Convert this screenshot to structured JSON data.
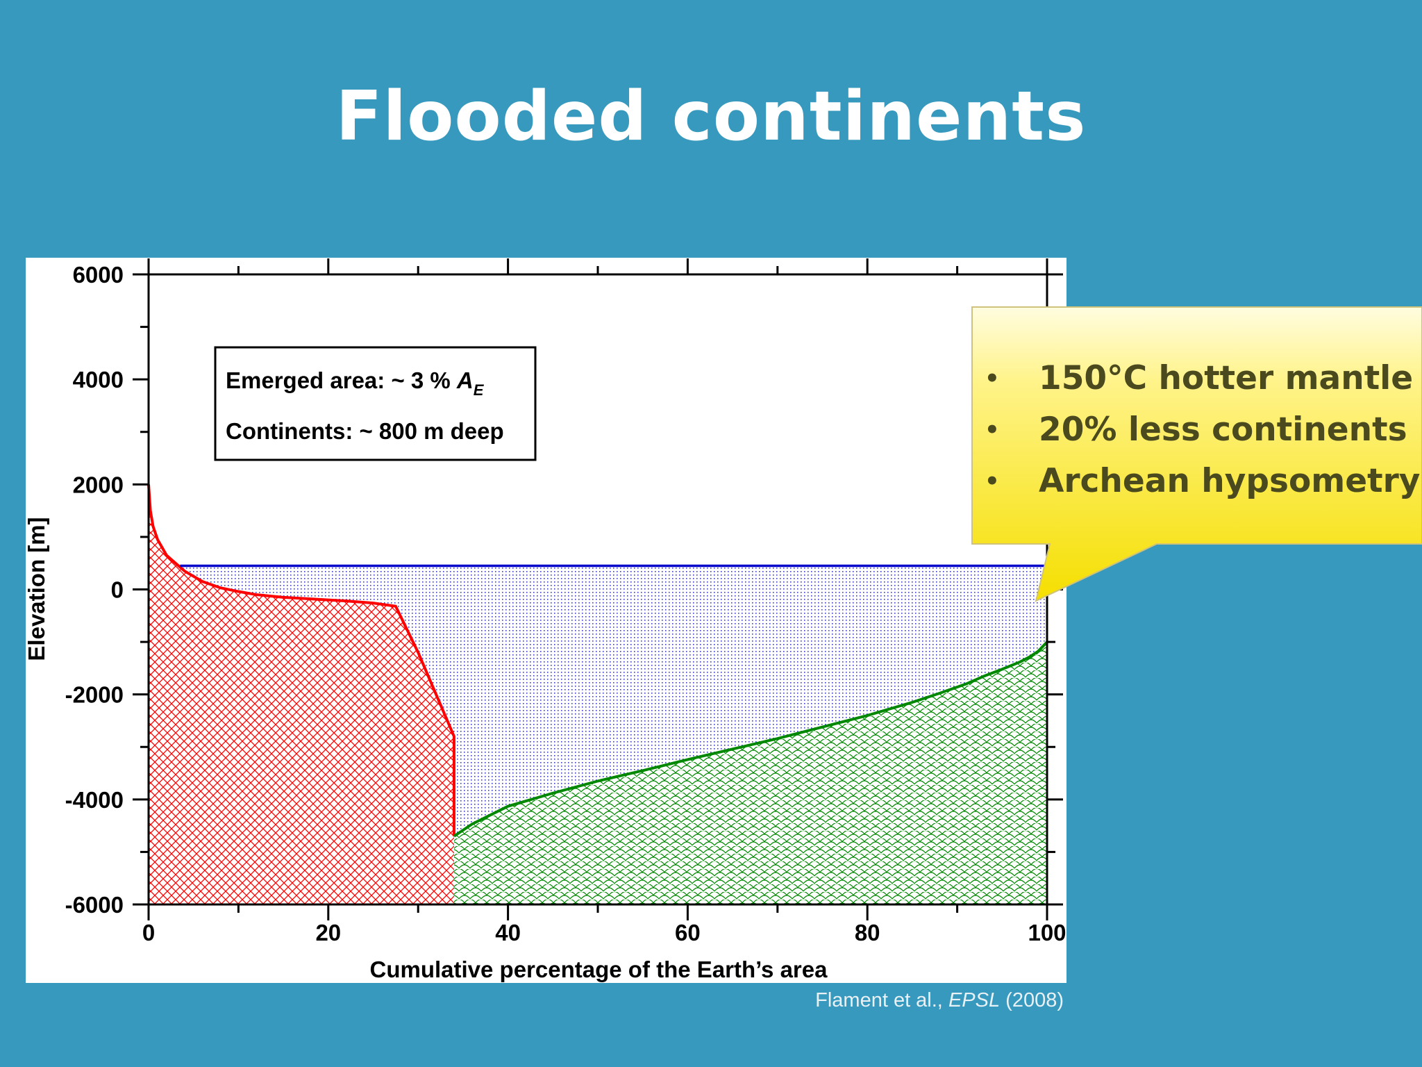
{
  "slide": {
    "title": "Flooded continents"
  },
  "callout": {
    "items": [
      "150°C hotter mantle",
      "20% less continents",
      "Archean hypsometry"
    ],
    "bullet": "•",
    "colors": {
      "fill_top": "#fffde0",
      "fill_bottom": "#f5df00",
      "text": "#4a4a1e"
    }
  },
  "citation": {
    "authors": "Flament et al., ",
    "journal": "EPSL",
    "year": " (2008)"
  },
  "chart_data": {
    "type": "area",
    "xlabel": "Cumulative percentage of the Earth’s area",
    "ylabel": "Elevation [m]",
    "xlim": [
      0,
      100
    ],
    "ylim": [
      -6000,
      6000
    ],
    "xticks": [
      0,
      20,
      40,
      60,
      80,
      100
    ],
    "yticks": [
      6000,
      4000,
      2000,
      0,
      -2000,
      -4000,
      -6000
    ],
    "grid": false,
    "annotation": {
      "line1": "Emerged area: ~ 3 % ",
      "line1_symbol": "A",
      "line1_subscript": "E",
      "line2": "Continents: ~ 800 m deep",
      "placement": "top-left"
    },
    "sea_level": 450,
    "series": [
      {
        "color": "#ff0000",
        "hatch": "crosshatch",
        "x": [
          0,
          0.2,
          0.5,
          1,
          1.5,
          2,
          3,
          4,
          5,
          6,
          8,
          10,
          12,
          15,
          18,
          20,
          22,
          25,
          27.5,
          30,
          32,
          34,
          34,
          34
        ],
        "y": [
          2000,
          1500,
          1200,
          950,
          800,
          650,
          500,
          350,
          250,
          150,
          30,
          -40,
          -100,
          -150,
          -180,
          -200,
          -220,
          -260,
          -320,
          -1200,
          -2000,
          -2800,
          -4000,
          -4700
        ]
      },
      {
        "color": "#008800",
        "hatch": "scales",
        "x": [
          34,
          36,
          40,
          45,
          50,
          55,
          60,
          65,
          70,
          75,
          80,
          85,
          88,
          91,
          93,
          95,
          97,
          98,
          99,
          100
        ],
        "y": [
          -4700,
          -4470,
          -4130,
          -3880,
          -3650,
          -3450,
          -3240,
          -3040,
          -2840,
          -2620,
          -2400,
          -2150,
          -1980,
          -1800,
          -1650,
          -1520,
          -1380,
          -1290,
          -1180,
          -1000
        ]
      },
      {
        "color": "#0000cc",
        "hatch": "dots",
        "x": [
          3.5,
          100
        ],
        "y": [
          450,
          450
        ]
      }
    ]
  }
}
